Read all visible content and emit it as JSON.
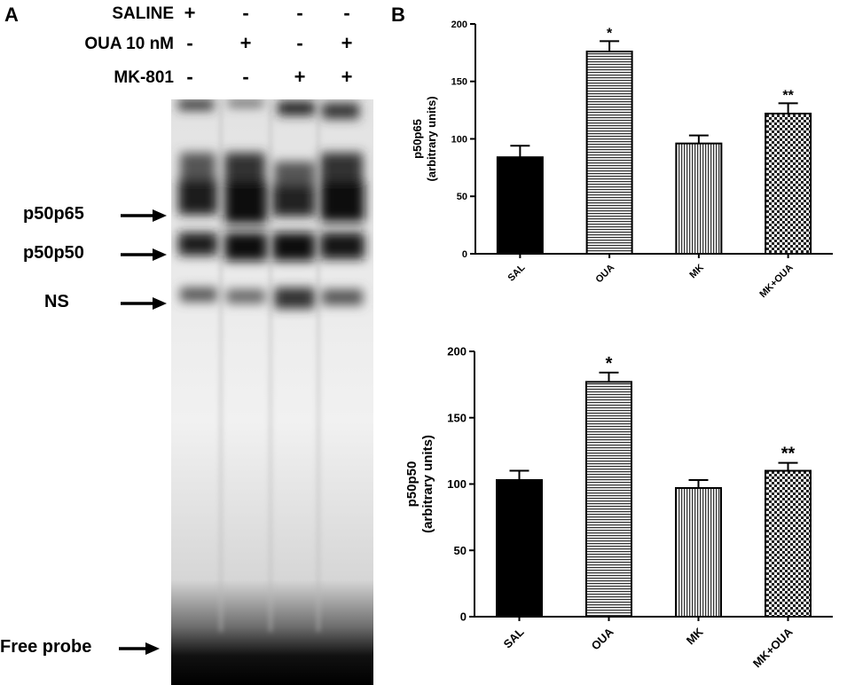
{
  "panel_a": {
    "letter": "A",
    "conditions": [
      {
        "label": "SALINE",
        "signs": [
          "+",
          "-",
          "-",
          "-"
        ]
      },
      {
        "label": "OUA 10 nM",
        "signs": [
          "-",
          "+",
          "-",
          "+"
        ]
      },
      {
        "label": "MK-801",
        "signs": [
          "-",
          "-",
          "+",
          "+"
        ]
      }
    ],
    "band_labels": [
      "p50p65",
      "p50p50",
      "NS",
      "Free probe"
    ]
  },
  "panel_b": {
    "letter": "B"
  },
  "chart_data": [
    {
      "type": "bar",
      "categories": [
        "SAL",
        "OUA",
        "MK",
        "MK+OUA"
      ],
      "values": [
        84,
        176,
        96,
        122
      ],
      "errors": [
        10,
        9,
        7,
        9
      ],
      "significance": [
        "",
        "*",
        "",
        "**"
      ],
      "title": "",
      "xlabel": "",
      "ylabel": "p50p65\n(arbitrary units)",
      "ylim": [
        0,
        200
      ],
      "yticks": [
        0,
        50,
        100,
        150,
        200
      ],
      "grid": false,
      "fills": [
        "solid-black",
        "horizontal-stripes",
        "vertical-stripes",
        "checkered"
      ]
    },
    {
      "type": "bar",
      "categories": [
        "SAL",
        "OUA",
        "MK",
        "MK+OUA"
      ],
      "values": [
        103,
        177,
        97,
        110
      ],
      "errors": [
        7,
        7,
        6,
        6
      ],
      "significance": [
        "",
        "*",
        "",
        "**"
      ],
      "title": "",
      "xlabel": "",
      "ylabel": "p50p50\n(arbitrary units)",
      "ylim": [
        0,
        200
      ],
      "yticks": [
        0,
        50,
        100,
        150,
        200
      ],
      "grid": false,
      "fills": [
        "solid-black",
        "horizontal-stripes",
        "vertical-stripes",
        "checkered"
      ]
    }
  ]
}
